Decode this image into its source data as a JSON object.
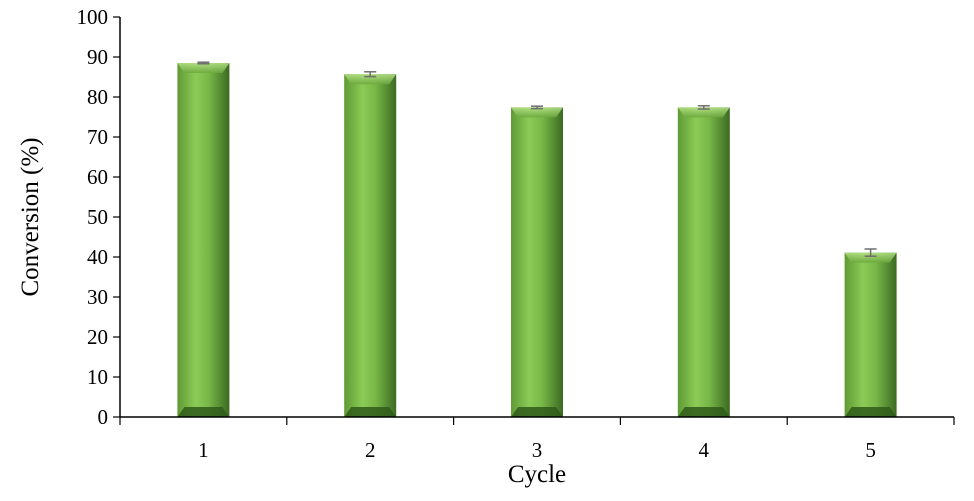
{
  "chart_data": {
    "type": "bar",
    "title": "",
    "xlabel": "Cycle",
    "ylabel": "Conversion  (%)",
    "categories": [
      "1",
      "2",
      "3",
      "4",
      "5"
    ],
    "values": [
      88.5,
      85.7,
      77.4,
      77.4,
      41.1
    ],
    "errors": [
      0.2,
      0.6,
      0.3,
      0.4,
      0.9
    ],
    "ylim": [
      0,
      100
    ],
    "yticks": [
      0,
      10,
      20,
      30,
      40,
      50,
      60,
      70,
      80,
      90,
      100
    ],
    "grid": false,
    "legend": "none",
    "colors": {
      "bar_light": "#8ccb56",
      "bar_mid": "#6aa83c",
      "bar_dark": "#3b6a22",
      "error_bar": "#6e6e6e",
      "axis": "#000000"
    }
  }
}
